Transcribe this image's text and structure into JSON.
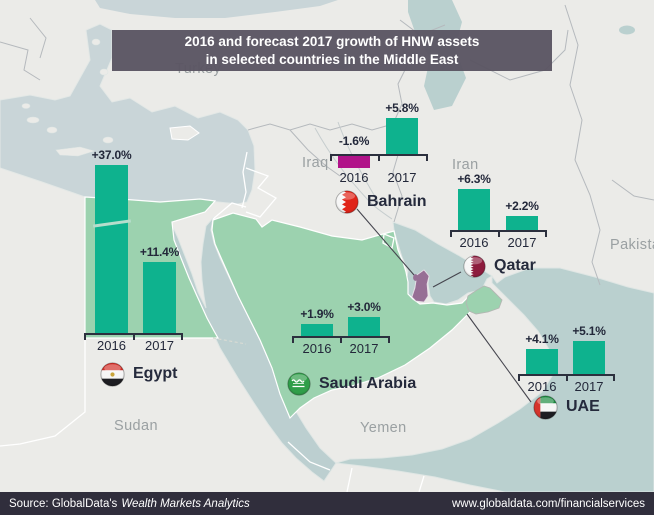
{
  "title": {
    "line1": "2016 and forecast 2017 growth of HNW assets",
    "line2": "in selected countries in the Middle East"
  },
  "footer": {
    "source_prefix": "Source: GlobalData's",
    "source_product": "Wealth Markets Analytics",
    "url": "www.globaldata.com/financialservices"
  },
  "map": {
    "labels": {
      "turkey": "Turkey",
      "iraq": "Iraq",
      "iran": "Iran",
      "pakistan": "Pakistan",
      "sudan": "Sudan",
      "yemen": "Yemen"
    }
  },
  "colors": {
    "bar_positive": "#0eb28e",
    "bar_negative": "#b11389",
    "highlight_green": "#9cd2af",
    "highlight_purple": "#976f95",
    "axis_dark": "#2c303e",
    "sea": "#c9d5d8",
    "sea_teal": "#bad0cf",
    "land": "#ebebe8",
    "title_bg": "#5b5663",
    "footer_bg": "#302e3c"
  },
  "chart_data": [
    {
      "type": "bar",
      "country": "Egypt",
      "categories": [
        "2016",
        "2017"
      ],
      "values": [
        37.0,
        11.4
      ],
      "labels": [
        "+37.0%",
        "+11.4%"
      ],
      "map_color": "#9cd2af"
    },
    {
      "type": "bar",
      "country": "Bahrain",
      "categories": [
        "2016",
        "2017"
      ],
      "values": [
        -1.6,
        5.8
      ],
      "labels": [
        "-1.6%",
        "+5.8%"
      ],
      "map_color": "#976f95"
    },
    {
      "type": "bar",
      "country": "Qatar",
      "categories": [
        "2016",
        "2017"
      ],
      "values": [
        6.3,
        2.2
      ],
      "labels": [
        "+6.3%",
        "+2.2%"
      ],
      "map_color": "#976f95"
    },
    {
      "type": "bar",
      "country": "Saudi Arabia",
      "categories": [
        "2016",
        "2017"
      ],
      "values": [
        1.9,
        3.0
      ],
      "labels": [
        "+1.9%",
        "+3.0%"
      ],
      "map_color": "#9cd2af"
    },
    {
      "type": "bar",
      "country": "UAE",
      "categories": [
        "2016",
        "2017"
      ],
      "values": [
        4.1,
        5.1
      ],
      "labels": [
        "+4.1%",
        "+5.1%"
      ],
      "map_color": "#9cd2af"
    }
  ]
}
